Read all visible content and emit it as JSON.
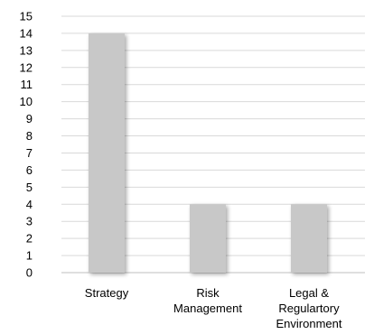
{
  "chart_data": {
    "type": "bar",
    "categories": [
      [
        "Strategy"
      ],
      [
        "Risk",
        "Management"
      ],
      [
        "Legal &",
        "Regulartory",
        "Environment"
      ]
    ],
    "values": [
      14,
      4,
      4
    ],
    "ylim": [
      0,
      15
    ],
    "yticks": [
      "0",
      "1",
      "2",
      "3",
      "4",
      "5",
      "6",
      "7",
      "8",
      "9",
      "10",
      "11",
      "12",
      "13",
      "14",
      "15"
    ],
    "grid": true,
    "colors": {
      "bar": "#c8c8c8",
      "bar_shadow": "#dcdcdc",
      "grid": "#d9d9d9",
      "axis": "#bfbfbf"
    }
  }
}
